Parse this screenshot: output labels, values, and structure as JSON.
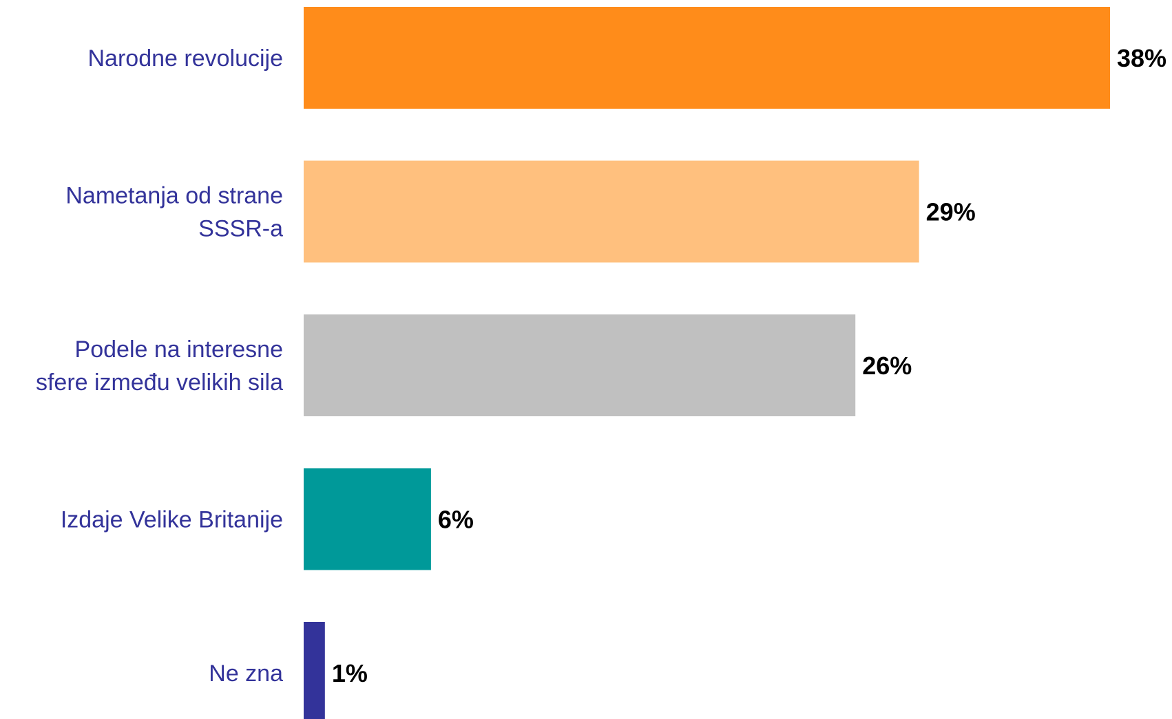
{
  "chart_data": {
    "type": "bar",
    "orientation": "horizontal",
    "title": "",
    "xlabel": "",
    "ylabel": "",
    "xlim": [
      0,
      38
    ],
    "grid": false,
    "legend": "none",
    "categories": [
      [
        "Narodne revolucije"
      ],
      [
        "Nametanja od strane",
        "SSSR-a"
      ],
      [
        "Podele na interesne",
        "sfere između velikih sila"
      ],
      [
        "Izdaje Velike Britanije"
      ],
      [
        "Ne zna"
      ]
    ],
    "values": [
      38,
      29,
      26,
      6,
      1
    ],
    "value_labels": [
      "38%",
      "29%",
      "26%",
      "6%",
      "1%"
    ],
    "colors": [
      "#ff8c1a",
      "#ffc07e",
      "#c0c0c0",
      "#009999",
      "#33339a"
    ],
    "category_label_color": "#33339a",
    "value_label_color": "#000000"
  }
}
